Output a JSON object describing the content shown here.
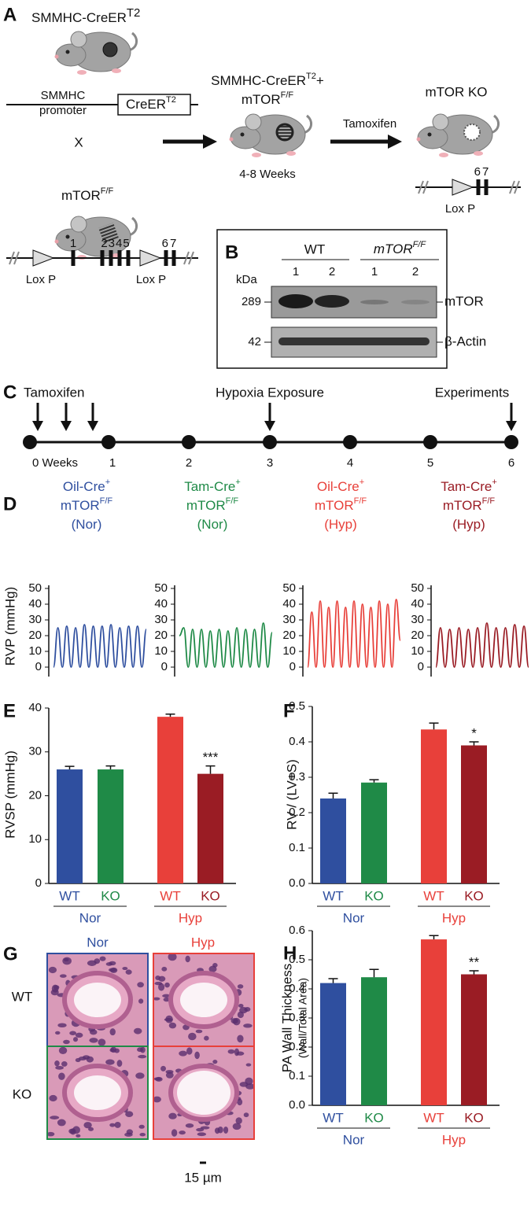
{
  "panel_a": {
    "label": "A",
    "cross_strain": {
      "name": "SMMHC-CreER",
      "name_sup": "T2",
      "promoter_line1": "SMMHC",
      "promoter_line2": "promoter",
      "gene": "CreER",
      "gene_sup": "T2"
    },
    "cross_symbol": "X",
    "flox_strain": {
      "name": "mTOR",
      "name_sup": "F/F",
      "exon1": "1",
      "exons2to5": "2345",
      "exons6to7": "67",
      "loxp_left": "Lox P",
      "loxp_right": "Lox P"
    },
    "offspring": {
      "line1": "SMMHC-CreER",
      "line1_sup": "T2",
      "line1_tail": "+",
      "line2": "mTOR",
      "line2_sup": "F/F",
      "age": "4-8 Weeks"
    },
    "treatment": "Tamoxifen",
    "knockout": {
      "name": "mTOR KO",
      "exons6to7": "67",
      "loxp": "Lox P"
    }
  },
  "panel_b": {
    "label": "B",
    "group1": "WT",
    "group2": "mTOR",
    "group2_sup": "F/F",
    "lanes": [
      "1",
      "2",
      "1",
      "2"
    ],
    "unit": "kDa",
    "markers": [
      "289",
      "42"
    ],
    "bands": [
      "mTOR",
      "β-Actin"
    ]
  },
  "panel_c": {
    "label": "C",
    "events": [
      "Tamoxifen",
      "Hypoxia Exposure",
      "Experiments"
    ],
    "timeline": [
      "0 Weeks",
      "1",
      "2",
      "3",
      "4",
      "5",
      "6"
    ]
  },
  "panel_g": {
    "label": "G",
    "columns": [
      "Nor",
      "Hyp"
    ],
    "rows": [
      "WT",
      "KO"
    ],
    "scale_bar": "15 µm"
  },
  "chart_data": [
    {
      "type": "line",
      "panel": "D",
      "ylabel": "RVP (mmHg)",
      "title": [
        {
          "text": "Oil-Cre",
          "sup": "+"
        },
        {
          "text": "mTOR",
          "sup": "F/F"
        },
        {
          "text": "(Nor)"
        }
      ],
      "color": "#2f4f9f",
      "values": [
        0,
        25,
        0,
        26,
        0,
        25,
        0,
        27,
        0,
        26,
        0,
        26,
        0,
        27,
        0,
        25,
        0,
        26,
        0,
        26,
        0,
        24
      ],
      "ylim": [
        0,
        50
      ],
      "yticks": [
        0,
        10,
        20,
        30,
        40,
        50
      ]
    },
    {
      "type": "line",
      "title": [
        {
          "text": "Tam-Cre",
          "sup": "+"
        },
        {
          "text": "mTOR",
          "sup": "F/F"
        },
        {
          "text": "(Nor)"
        }
      ],
      "color": "#1f8a47",
      "values": [
        20,
        25,
        0,
        24,
        0,
        24,
        0,
        23,
        0,
        24,
        0,
        23,
        0,
        25,
        0,
        24,
        0,
        24,
        0,
        28,
        0,
        22
      ],
      "ylim": [
        0,
        50
      ],
      "yticks": [
        0,
        10,
        20,
        30,
        40,
        50
      ]
    },
    {
      "type": "line",
      "title": [
        {
          "text": "Oil-Cre",
          "sup": "+"
        },
        {
          "text": "mTOR",
          "sup": "F/F"
        },
        {
          "text": "(Hyp)"
        }
      ],
      "color": "#e8403a",
      "values": [
        0,
        35,
        0,
        42,
        0,
        38,
        0,
        42,
        0,
        38,
        0,
        42,
        0,
        40,
        0,
        38,
        0,
        42,
        0,
        40,
        0,
        43,
        17
      ],
      "ylim": [
        0,
        50
      ],
      "yticks": [
        0,
        10,
        20,
        30,
        40,
        50
      ]
    },
    {
      "type": "line",
      "title": [
        {
          "text": "Tam-Cre",
          "sup": "+"
        },
        {
          "text": "mTOR",
          "sup": "F/F"
        },
        {
          "text": "(Hyp)"
        }
      ],
      "color": "#9a1c24",
      "values": [
        0,
        25,
        0,
        24,
        0,
        25,
        0,
        24,
        0,
        25,
        0,
        28,
        0,
        25,
        0,
        25,
        0,
        27,
        0,
        26,
        0
      ],
      "ylim": [
        0,
        50
      ],
      "yticks": [
        0,
        10,
        20,
        30,
        40,
        50
      ]
    },
    {
      "type": "bar",
      "panel": "E",
      "ylabel": [
        "RVSP (mmHg)"
      ],
      "categories": [
        "WT",
        "KO",
        "WT",
        "KO"
      ],
      "colors": [
        "#2f4f9f",
        "#1f8a47",
        "#e8403a",
        "#9a1c24"
      ],
      "groups": [
        {
          "label": "Nor",
          "color": "#2f4f9f"
        },
        {
          "label": "Hyp",
          "color": "#e8403a"
        }
      ],
      "values": [
        26,
        26,
        38,
        25
      ],
      "errors": [
        0.7,
        0.8,
        0.6,
        1.8
      ],
      "annotations": [
        {
          "index": 3,
          "text": "***"
        }
      ],
      "ylim": [
        0,
        40
      ],
      "yticks": [
        0,
        10,
        20,
        30,
        40
      ]
    },
    {
      "type": "bar",
      "panel": "F",
      "ylabel": [
        "RV / (LV+S)"
      ],
      "categories": [
        "WT",
        "KO",
        "WT",
        "KO"
      ],
      "colors": [
        "#2f4f9f",
        "#1f8a47",
        "#e8403a",
        "#9a1c24"
      ],
      "groups": [
        {
          "label": "Nor",
          "color": "#2f4f9f"
        },
        {
          "label": "Hyp",
          "color": "#e8403a"
        }
      ],
      "values": [
        0.24,
        0.285,
        0.435,
        0.39
      ],
      "errors": [
        0.015,
        0.008,
        0.018,
        0.01
      ],
      "annotations": [
        {
          "index": 3,
          "text": "*"
        }
      ],
      "ylim": [
        0,
        0.5
      ],
      "yticks": [
        {
          "value": 0,
          "label": "0.0"
        },
        0.1,
        0.2,
        0.3,
        0.4,
        0.5
      ]
    },
    {
      "type": "bar",
      "panel": "H",
      "ylabel": [
        "PA Wall Thickness",
        "(Wall/Total Area)"
      ],
      "categories": [
        "WT",
        "KO",
        "WT",
        "KO"
      ],
      "colors": [
        "#2f4f9f",
        "#1f8a47",
        "#e8403a",
        "#9a1c24"
      ],
      "groups": [
        {
          "label": "Nor",
          "color": "#2f4f9f"
        },
        {
          "label": "Hyp",
          "color": "#e8403a"
        }
      ],
      "values": [
        0.42,
        0.44,
        0.57,
        0.45
      ],
      "errors": [
        0.015,
        0.027,
        0.013,
        0.012
      ],
      "annotations": [
        {
          "index": 3,
          "text": "**"
        }
      ],
      "ylim": [
        0,
        0.6
      ],
      "yticks": [
        {
          "value": 0,
          "label": "0.0"
        },
        0.1,
        0.2,
        0.3,
        0.4,
        0.5,
        0.6
      ]
    }
  ]
}
